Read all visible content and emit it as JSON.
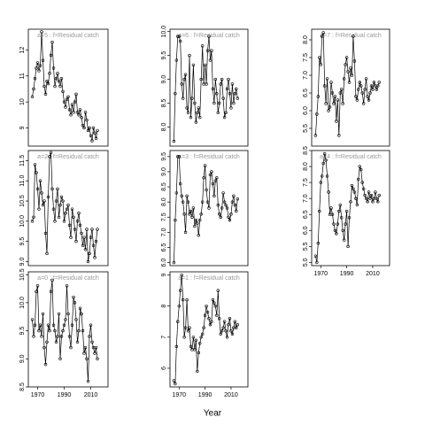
{
  "xlabel": "Year",
  "chart_data": [
    {
      "type": "line",
      "strip": "a=0 : f=Residual catch",
      "xlim": [
        1963,
        2023
      ],
      "xticks": [
        1970,
        1990,
        2010
      ],
      "ylim": [
        8.5,
        10.55
      ],
      "yticks": [
        8.5,
        {
          "value": 9,
          "label": "9.0"
        },
        9.5,
        {
          "value": 10,
          "label": "10.0"
        },
        10.5
      ],
      "x": [
        1966,
        1967,
        1968,
        1969,
        1970,
        1971,
        1972,
        1973,
        1974,
        1975,
        1976,
        1977,
        1978,
        1979,
        1980,
        1981,
        1982,
        1983,
        1984,
        1985,
        1986,
        1987,
        1988,
        1989,
        1990,
        1991,
        1992,
        1993,
        1994,
        1995,
        1996,
        1997,
        1998,
        1999,
        2000,
        2001,
        2002,
        2003,
        2004,
        2005,
        2006,
        2007,
        2008,
        2009,
        2010,
        2011,
        2012,
        2013,
        2014,
        2015
      ],
      "values": [
        9.7,
        9.4,
        9.6,
        10.2,
        10.3,
        9.5,
        9.6,
        9.4,
        9.8,
        9.2,
        8.9,
        9.3,
        9.6,
        9.5,
        10.2,
        10.4,
        9.6,
        9.5,
        9.3,
        9.4,
        9.8,
        9.0,
        9.4,
        9.5,
        9.6,
        9.7,
        10.3,
        9.8,
        9.4,
        9.2,
        9.6,
        10.1,
        10.0,
        9.7,
        9.3,
        9.5,
        9.9,
        9.8,
        9.5,
        9.1,
        9.2,
        9.0,
        8.6,
        9.4,
        9.6,
        9.3,
        9.2,
        9.1,
        9.2,
        9.0
      ]
    },
    {
      "type": "line",
      "strip": "a=1 : f=Residual catch",
      "xlim": [
        1963,
        2023
      ],
      "xticks": [
        1970,
        1990,
        2010
      ],
      "ylim": [
        5.4,
        9.1
      ],
      "yticks": [
        6,
        7,
        8,
        9
      ],
      "x": [
        1966,
        1967,
        1968,
        1969,
        1970,
        1971,
        1972,
        1973,
        1974,
        1975,
        1976,
        1977,
        1978,
        1979,
        1980,
        1981,
        1982,
        1983,
        1984,
        1985,
        1986,
        1987,
        1988,
        1989,
        1990,
        1991,
        1992,
        1993,
        1994,
        1995,
        1996,
        1997,
        1998,
        1999,
        2000,
        2001,
        2002,
        2003,
        2004,
        2005,
        2006,
        2007,
        2008,
        2009,
        2010,
        2011,
        2012,
        2013,
        2014,
        2015
      ],
      "values": [
        5.6,
        5.5,
        6.7,
        7.5,
        8.0,
        8.5,
        9.0,
        8.2,
        7.0,
        7.3,
        8.2,
        7.2,
        7.3,
        6.7,
        6.6,
        7.0,
        6.6,
        6.9,
        5.9,
        6.5,
        6.8,
        7.0,
        7.1,
        7.3,
        7.7,
        8.0,
        7.8,
        7.6,
        7.4,
        7.5,
        8.2,
        8.1,
        8.0,
        7.7,
        8.5,
        7.6,
        7.1,
        7.2,
        7.3,
        7.5,
        7.2,
        7.0,
        7.4,
        7.6,
        7.2,
        7.1,
        7.3,
        7.5,
        7.3,
        7.4
      ]
    },
    {
      "type": "line",
      "strip": "a=2 : f=Residual catch",
      "xlim": [
        1963,
        2023
      ],
      "ylim": [
        8.9,
        11.75
      ],
      "yticks": [
        {
          "value": 9,
          "label": "9.0"
        },
        9.5,
        {
          "value": 10,
          "label": "10.0"
        },
        10.5,
        {
          "value": 11,
          "label": "11.0"
        },
        11.5
      ],
      "x": [
        1966,
        1967,
        1968,
        1969,
        1970,
        1971,
        1972,
        1973,
        1974,
        1975,
        1976,
        1977,
        1978,
        1979,
        1980,
        1981,
        1982,
        1983,
        1984,
        1985,
        1986,
        1987,
        1988,
        1989,
        1990,
        1991,
        1992,
        1993,
        1994,
        1995,
        1996,
        1997,
        1998,
        1999,
        2000,
        2001,
        2002,
        2003,
        2004,
        2005,
        2006,
        2007,
        2008,
        2009,
        2010,
        2011,
        2012,
        2013,
        2014,
        2015
      ],
      "values": [
        10.0,
        10.1,
        11.4,
        11.2,
        10.8,
        10.3,
        11.0,
        10.7,
        10.4,
        10.5,
        9.7,
        9.2,
        10.6,
        11.6,
        11.7,
        10.8,
        10.3,
        10.0,
        10.5,
        10.8,
        10.1,
        10.4,
        10.6,
        10.5,
        10.0,
        10.2,
        10.3,
        10.4,
        9.9,
        9.6,
        10.3,
        10.1,
        9.8,
        9.5,
        10.0,
        10.2,
        9.9,
        9.7,
        9.4,
        9.6,
        9.3,
        9.8,
        9.0,
        9.2,
        9.6,
        9.8,
        9.4,
        9.1,
        9.5,
        9.8
      ]
    },
    {
      "type": "line",
      "strip": "a=3 : f=Residual catch",
      "xlim": [
        1963,
        2023
      ],
      "ylim": [
        5.9,
        9.7
      ],
      "yticks": [
        {
          "value": 6,
          "label": "6.0"
        },
        6.5,
        {
          "value": 7,
          "label": "7.0"
        },
        7.5,
        {
          "value": 8,
          "label": "8.0"
        },
        8.5,
        {
          "value": 9,
          "label": "9.0"
        },
        9.5
      ],
      "x": [
        1966,
        1967,
        1968,
        1969,
        1970,
        1971,
        1972,
        1973,
        1974,
        1975,
        1976,
        1977,
        1978,
        1979,
        1980,
        1981,
        1982,
        1983,
        1984,
        1985,
        1986,
        1987,
        1988,
        1989,
        1990,
        1991,
        1992,
        1993,
        1994,
        1995,
        1996,
        1997,
        1998,
        1999,
        2000,
        2001,
        2002,
        2003,
        2004,
        2005,
        2006,
        2007,
        2008,
        2009,
        2010,
        2011,
        2012,
        2013,
        2014,
        2015
      ],
      "values": [
        6.0,
        7.4,
        8.3,
        9.5,
        9.5,
        8.6,
        8.2,
        8.0,
        7.6,
        7.0,
        8.2,
        8.0,
        7.6,
        7.7,
        7.5,
        7.8,
        7.2,
        7.4,
        7.3,
        6.9,
        7.4,
        7.6,
        8.0,
        8.8,
        9.2,
        8.4,
        8.0,
        7.8,
        8.9,
        9.0,
        8.6,
        8.2,
        8.7,
        8.8,
        7.9,
        7.6,
        7.5,
        7.8,
        8.3,
        8.0,
        7.9,
        7.8,
        7.5,
        7.4,
        7.6,
        8.0,
        8.2,
        7.9,
        7.7,
        8.1
      ]
    },
    {
      "type": "line",
      "strip": "a=4 : f=Residual catch",
      "xlim": [
        1963,
        2023
      ],
      "xticks": [
        1970,
        1990,
        2010
      ],
      "ylim": [
        4.9,
        8.5
      ],
      "yticks": [
        {
          "value": 5,
          "label": "5.0"
        },
        5.5,
        {
          "value": 6,
          "label": "6.0"
        },
        6.5,
        {
          "value": 7,
          "label": "7.0"
        },
        7.5,
        {
          "value": 8,
          "label": "8.0"
        },
        8.5
      ],
      "x": [
        1966,
        1967,
        1968,
        1969,
        1970,
        1971,
        1972,
        1973,
        1974,
        1975,
        1976,
        1977,
        1978,
        1979,
        1980,
        1981,
        1982,
        1983,
        1984,
        1985,
        1986,
        1987,
        1988,
        1989,
        1990,
        1991,
        1992,
        1993,
        1994,
        1995,
        1996,
        1997,
        1998,
        1999,
        2000,
        2001,
        2002,
        2003,
        2004,
        2005,
        2006,
        2007,
        2008,
        2009,
        2010,
        2011,
        2012,
        2013,
        2014,
        2015
      ],
      "values": [
        5.2,
        5.0,
        5.6,
        6.6,
        7.5,
        7.7,
        8.1,
        8.4,
        8.2,
        7.7,
        7.2,
        6.5,
        6.7,
        6.5,
        6.2,
        6.0,
        5.9,
        6.2,
        6.6,
        6.8,
        6.4,
        6.0,
        5.7,
        6.2,
        6.6,
        5.5,
        6.4,
        6.9,
        7.4,
        7.3,
        7.2,
        7.0,
        6.8,
        7.6,
        8.0,
        7.9,
        7.5,
        7.3,
        7.1,
        7.0,
        6.9,
        7.2,
        7.0,
        7.1,
        6.9,
        7.0,
        7.2,
        7.0,
        6.9,
        7.1
      ]
    },
    {
      "type": "line",
      "strip": "a=5 : f=Residual catch",
      "xlim": [
        1963,
        2023
      ],
      "ylim": [
        8.3,
        12.8
      ],
      "yticks": [
        9,
        10,
        11,
        12
      ],
      "x": [
        1966,
        1967,
        1968,
        1969,
        1970,
        1971,
        1972,
        1973,
        1974,
        1975,
        1976,
        1977,
        1978,
        1979,
        1980,
        1981,
        1982,
        1983,
        1984,
        1985,
        1986,
        1987,
        1988,
        1989,
        1990,
        1991,
        1992,
        1993,
        1994,
        1995,
        1996,
        1997,
        1998,
        1999,
        2000,
        2001,
        2002,
        2003,
        2004,
        2005,
        2006,
        2007,
        2008,
        2009,
        2010,
        2011,
        2012,
        2013,
        2014,
        2015
      ],
      "values": [
        10.2,
        10.5,
        10.9,
        11.3,
        11.5,
        11.2,
        11.4,
        12.7,
        11.6,
        10.6,
        10.3,
        10.8,
        10.7,
        11.1,
        11.8,
        12.3,
        11.3,
        10.6,
        10.9,
        11.1,
        10.8,
        10.6,
        10.9,
        10.4,
        10.0,
        9.8,
        10.1,
        10.2,
        9.7,
        9.5,
        9.9,
        9.6,
        10.0,
        10.3,
        9.6,
        9.5,
        9.7,
        9.4,
        9.1,
        9.0,
        9.6,
        9.3,
        8.9,
        9.0,
        8.7,
        8.5,
        9.0,
        8.8,
        8.6,
        8.9
      ]
    },
    {
      "type": "line",
      "strip": "a=6 : f=Residual catch",
      "xlim": [
        1963,
        2023
      ],
      "ylim": [
        7.6,
        10.05
      ],
      "yticks": [
        {
          "value": 8,
          "label": "8.0"
        },
        8.5,
        {
          "value": 9,
          "label": "9.0"
        },
        9.5,
        {
          "value": 10,
          "label": "10.0"
        }
      ],
      "x": [
        1966,
        1967,
        1968,
        1969,
        1970,
        1971,
        1972,
        1973,
        1974,
        1975,
        1976,
        1977,
        1978,
        1979,
        1980,
        1981,
        1982,
        1983,
        1984,
        1985,
        1986,
        1987,
        1988,
        1989,
        1990,
        1991,
        1992,
        1993,
        1994,
        1995,
        1996,
        1997,
        1998,
        1999,
        2000,
        2001,
        2002,
        2003,
        2004,
        2005,
        2006,
        2007,
        2008,
        2009,
        2010,
        2011,
        2012,
        2013,
        2014,
        2015
      ],
      "values": [
        7.7,
        8.7,
        9.4,
        9.9,
        9.9,
        9.8,
        8.9,
        8.6,
        9.0,
        9.1,
        8.4,
        8.3,
        9.5,
        8.2,
        8.6,
        9.3,
        8.5,
        8.1,
        8.3,
        8.4,
        8.2,
        9.0,
        9.7,
        8.9,
        9.3,
        8.9,
        9.6,
        9.9,
        9.4,
        9.6,
        8.8,
        8.5,
        9.0,
        8.7,
        8.3,
        8.5,
        8.9,
        9.0,
        8.6,
        8.2,
        8.3,
        8.8,
        9.0,
        8.7,
        8.4,
        8.9,
        8.5,
        8.7,
        8.8,
        8.6
      ]
    },
    {
      "type": "line",
      "strip": "a=7 : f=Residual catch",
      "xlim": [
        1963,
        2023
      ],
      "ylim": [
        5.0,
        8.3
      ],
      "yticks": [
        5.5,
        {
          "value": 6,
          "label": "6.0"
        },
        6.5,
        {
          "value": 7,
          "label": "7.0"
        },
        7.5,
        {
          "value": 8,
          "label": "8.0"
        }
      ],
      "x": [
        1966,
        1967,
        1968,
        1969,
        1970,
        1971,
        1972,
        1973,
        1974,
        1975,
        1976,
        1977,
        1978,
        1979,
        1980,
        1981,
        1982,
        1983,
        1984,
        1985,
        1986,
        1987,
        1988,
        1989,
        1990,
        1991,
        1992,
        1993,
        1994,
        1995,
        1996,
        1997,
        1998,
        1999,
        2000,
        2001,
        2002,
        2003,
        2004,
        2005,
        2006,
        2007,
        2008,
        2009,
        2010,
        2011,
        2012,
        2013,
        2014,
        2015
      ],
      "values": [
        5.3,
        5.9,
        6.4,
        7.5,
        7.3,
        8.1,
        8.2,
        6.7,
        6.2,
        6.9,
        6.0,
        6.1,
        6.8,
        6.5,
        6.2,
        6.4,
        5.7,
        6.3,
        5.3,
        6.5,
        6.6,
        6.2,
        6.9,
        7.3,
        7.5,
        7.1,
        6.8,
        7.2,
        7.0,
        8.1,
        7.4,
        6.4,
        6.3,
        6.6,
        6.8,
        6.7,
        6.5,
        6.2,
        6.6,
        6.9,
        6.4,
        6.3,
        6.5,
        6.7,
        6.6,
        6.8,
        6.7,
        6.6,
        6.7,
        6.8
      ]
    }
  ]
}
